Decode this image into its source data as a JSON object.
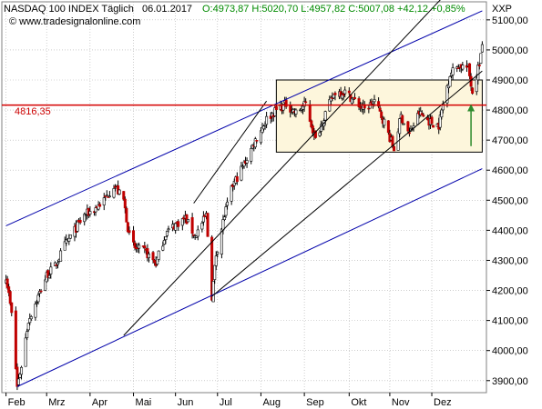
{
  "header": {
    "symbol": "NASDAQ 100 INDEX Täglich",
    "date": "06.01.2017",
    "ohlc": "O:4973,87 H:5020,70 L:4957,82 C:5007,08 +42,12 +0,85%",
    "source": "© www.tradesignalonline.com",
    "axis_unit": "XXP"
  },
  "colors": {
    "up_candle": "#ffffff",
    "down_candle": "#c00000",
    "wick": "#000000",
    "level_line": "#d40000",
    "trend_blue": "#0000aa",
    "trend_black": "#000000",
    "box_fill": "#fdf6dc",
    "arrow": "#2e8b2e",
    "grid": "#b0b0b0"
  },
  "chart_data": {
    "type": "candlestick",
    "x_axis": {
      "labels": [
        "Feb",
        "Mrz",
        "Apr",
        "Mai",
        "Jun",
        "Jul",
        "Aug",
        "Sep",
        "Okt",
        "Nov",
        "Dez"
      ]
    },
    "y_axis": {
      "ticks": [
        3900,
        4000,
        4100,
        4200,
        4300,
        4400,
        4500,
        4600,
        4700,
        4800,
        4900,
        5000,
        5100
      ],
      "tick_labels": [
        "3900,00",
        "4000,00",
        "4100,00",
        "4200,00",
        "4300,00",
        "4400,00",
        "4500,00",
        "4600,00",
        "4700,00",
        "4800,00",
        "4900,00",
        "5000,00",
        "5100,00"
      ],
      "range": [
        3860,
        5160
      ]
    },
    "horizontal_level": {
      "value": 4816.35,
      "label": "4816,35"
    },
    "consolidation_box": {
      "start": "2016-08-12",
      "end": "2017-01-06",
      "low": 4660,
      "high": 4900
    },
    "trendlines": [
      {
        "color": "blue",
        "from": [
          "2016-02-01",
          4415
        ],
        "to": [
          "2017-01-06",
          5130
        ]
      },
      {
        "color": "blue",
        "from": [
          "2016-02-09",
          3880
        ],
        "to": [
          "2017-01-06",
          4605
        ]
      },
      {
        "color": "black",
        "from": [
          "2016-04-25",
          4050
        ],
        "to": [
          "2016-12-28",
          5270
        ]
      },
      {
        "color": "black",
        "from": [
          "2016-06-14",
          4490
        ],
        "to": [
          "2016-08-05",
          4830
        ]
      },
      {
        "color": "black",
        "from": [
          "2016-06-27",
          4180
        ],
        "to": [
          "2017-01-06",
          4930
        ]
      }
    ],
    "arrow": {
      "date": "2016-12-29",
      "from": 4680,
      "to": 4820
    },
    "path": [
      [
        "2016-02-01",
        4250
      ],
      [
        "2016-02-05",
        4120
      ],
      [
        "2016-02-09",
        3880
      ],
      [
        "2016-02-12",
        3950
      ],
      [
        "2016-02-17",
        4100
      ],
      [
        "2016-02-24",
        4180
      ],
      [
        "2016-03-01",
        4250
      ],
      [
        "2016-03-07",
        4280
      ],
      [
        "2016-03-14",
        4350
      ],
      [
        "2016-03-21",
        4400
      ],
      [
        "2016-03-28",
        4450
      ],
      [
        "2016-04-04",
        4470
      ],
      [
        "2016-04-11",
        4500
      ],
      [
        "2016-04-18",
        4550
      ],
      [
        "2016-04-25",
        4500
      ],
      [
        "2016-04-29",
        4380
      ],
      [
        "2016-05-03",
        4340
      ],
      [
        "2016-05-10",
        4330
      ],
      [
        "2016-05-18",
        4290
      ],
      [
        "2016-05-25",
        4390
      ],
      [
        "2016-06-01",
        4420
      ],
      [
        "2016-06-08",
        4440
      ],
      [
        "2016-06-15",
        4380
      ],
      [
        "2016-06-23",
        4450
      ],
      [
        "2016-06-27",
        4180
      ],
      [
        "2016-06-30",
        4320
      ],
      [
        "2016-07-06",
        4450
      ],
      [
        "2016-07-12",
        4550
      ],
      [
        "2016-07-20",
        4620
      ],
      [
        "2016-07-28",
        4700
      ],
      [
        "2016-08-05",
        4770
      ],
      [
        "2016-08-12",
        4800
      ],
      [
        "2016-08-19",
        4820
      ],
      [
        "2016-08-26",
        4790
      ],
      [
        "2016-09-02",
        4820
      ],
      [
        "2016-09-09",
        4700
      ],
      [
        "2016-09-16",
        4790
      ],
      [
        "2016-09-23",
        4860
      ],
      [
        "2016-09-30",
        4860
      ],
      [
        "2016-10-07",
        4830
      ],
      [
        "2016-10-14",
        4800
      ],
      [
        "2016-10-21",
        4830
      ],
      [
        "2016-10-28",
        4760
      ],
      [
        "2016-11-04",
        4670
      ],
      [
        "2016-11-09",
        4780
      ],
      [
        "2016-11-15",
        4720
      ],
      [
        "2016-11-22",
        4790
      ],
      [
        "2016-11-30",
        4760
      ],
      [
        "2016-12-06",
        4750
      ],
      [
        "2016-12-09",
        4820
      ],
      [
        "2016-12-14",
        4920
      ],
      [
        "2016-12-20",
        4950
      ],
      [
        "2016-12-27",
        4940
      ],
      [
        "2016-12-30",
        4860
      ],
      [
        "2017-01-04",
        4960
      ],
      [
        "2017-01-06",
        5007
      ]
    ]
  }
}
